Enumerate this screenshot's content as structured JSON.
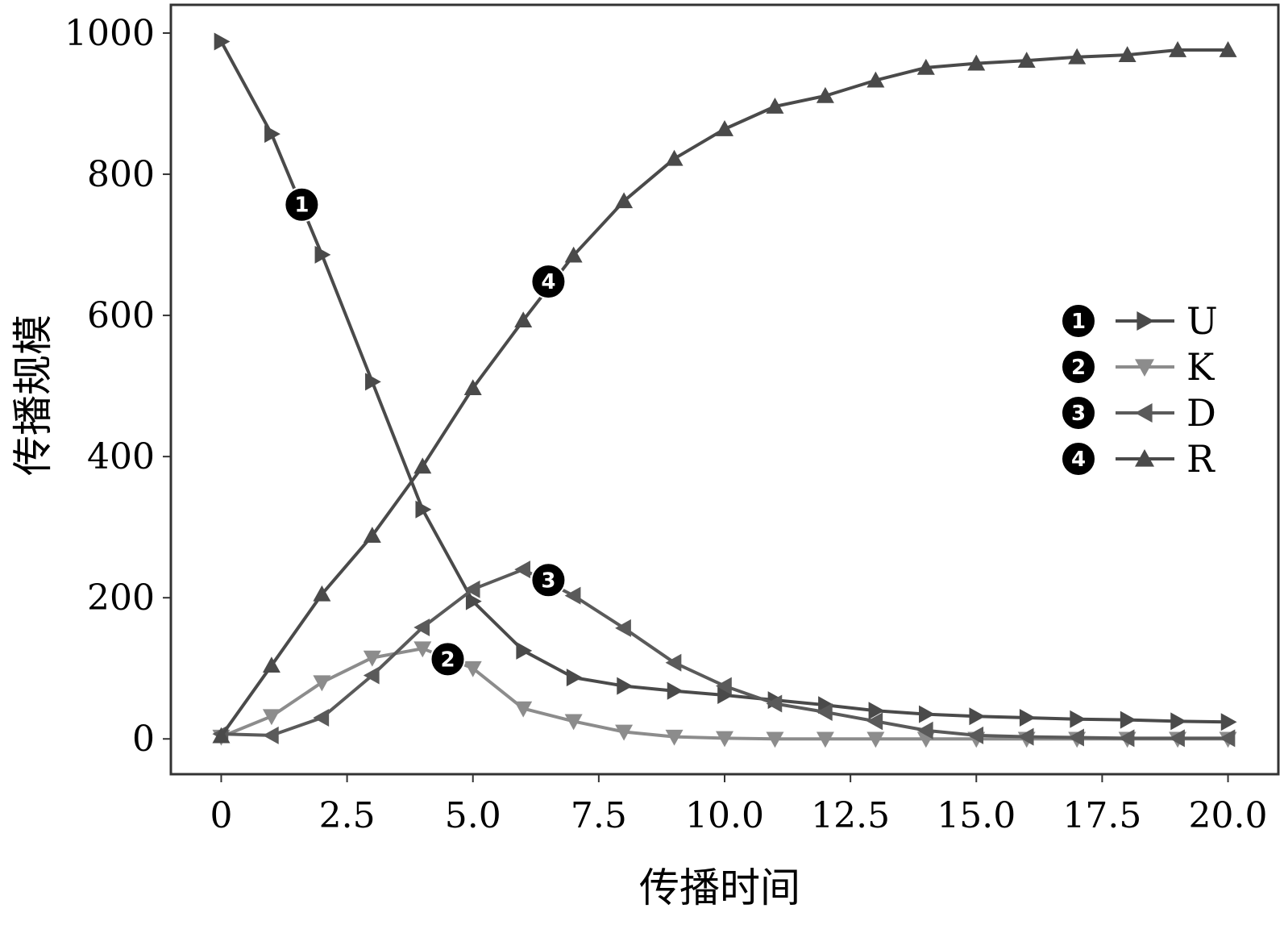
{
  "chart_data": {
    "type": "line",
    "xlabel": "传播时间",
    "ylabel": "传播规模",
    "xlim": [
      -1.0,
      21.0
    ],
    "ylim": [
      -50,
      1040
    ],
    "xticks": [
      "0",
      "2.5",
      "5.0",
      "7.5",
      "10.0",
      "12.5",
      "15.0",
      "17.5",
      "20.0"
    ],
    "yticks": [
      "0",
      "200",
      "400",
      "600",
      "800",
      "1000"
    ],
    "grid": false,
    "legend_position": "right",
    "x": [
      0,
      1,
      2,
      3,
      4,
      5,
      6,
      7,
      8,
      9,
      10,
      11,
      12,
      13,
      14,
      15,
      16,
      17,
      18,
      19,
      20
    ],
    "series": [
      {
        "name": "U",
        "badge": "1",
        "marker": "triangle-right",
        "color": "#4a4a4a",
        "values": [
          988,
          857,
          686,
          506,
          325,
          195,
          125,
          87,
          75,
          68,
          62,
          55,
          48,
          40,
          35,
          32,
          30,
          28,
          27,
          25,
          24
        ],
        "annotation": {
          "x": 1.6,
          "y": 757
        }
      },
      {
        "name": "K",
        "badge": "2",
        "marker": "triangle-down",
        "color": "#8c8c8c",
        "values": [
          3,
          32,
          80,
          115,
          128,
          100,
          43,
          25,
          10,
          3,
          1,
          0,
          0,
          0,
          0,
          0,
          0,
          0,
          0,
          0,
          0
        ],
        "annotation": {
          "x": 4.5,
          "y": 113
        }
      },
      {
        "name": "D",
        "badge": "3",
        "marker": "triangle-left",
        "color": "#5a5a5a",
        "values": [
          7,
          5,
          30,
          90,
          158,
          212,
          240,
          203,
          157,
          108,
          75,
          50,
          38,
          25,
          12,
          5,
          3,
          2,
          1,
          1,
          1
        ],
        "annotation": {
          "x": 6.5,
          "y": 225
        }
      },
      {
        "name": "R",
        "badge": "4",
        "marker": "triangle-up",
        "color": "#4a4a4a",
        "values": [
          4,
          104,
          205,
          288,
          386,
          497,
          593,
          685,
          762,
          822,
          864,
          896,
          911,
          933,
          951,
          957,
          961,
          966,
          969,
          976,
          976
        ],
        "annotation": {
          "x": 6.5,
          "y": 648
        }
      }
    ]
  }
}
